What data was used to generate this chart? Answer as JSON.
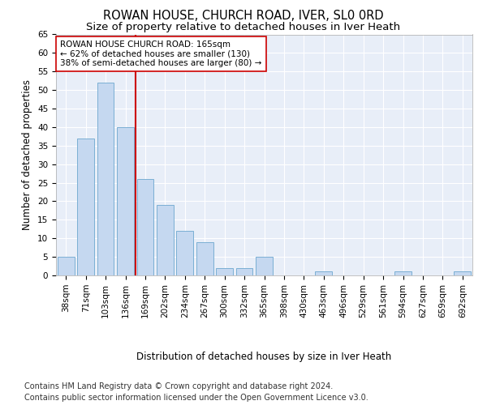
{
  "title": "ROWAN HOUSE, CHURCH ROAD, IVER, SL0 0RD",
  "subtitle": "Size of property relative to detached houses in Iver Heath",
  "xlabel": "Distribution of detached houses by size in Iver Heath",
  "ylabel": "Number of detached properties",
  "categories": [
    "38sqm",
    "71sqm",
    "103sqm",
    "136sqm",
    "169sqm",
    "202sqm",
    "234sqm",
    "267sqm",
    "300sqm",
    "332sqm",
    "365sqm",
    "398sqm",
    "430sqm",
    "463sqm",
    "496sqm",
    "529sqm",
    "561sqm",
    "594sqm",
    "627sqm",
    "659sqm",
    "692sqm"
  ],
  "values": [
    5,
    37,
    52,
    40,
    26,
    19,
    12,
    9,
    2,
    2,
    5,
    0,
    0,
    1,
    0,
    0,
    0,
    1,
    0,
    0,
    1
  ],
  "bar_color": "#c5d8f0",
  "bar_edge_color": "#7bafd4",
  "vline_color": "#cc0000",
  "annotation_text": "ROWAN HOUSE CHURCH ROAD: 165sqm\n← 62% of detached houses are smaller (130)\n38% of semi-detached houses are larger (80) →",
  "annotation_box_color": "#ffffff",
  "annotation_box_edge": "#cc0000",
  "ylim": [
    0,
    65
  ],
  "yticks": [
    0,
    5,
    10,
    15,
    20,
    25,
    30,
    35,
    40,
    45,
    50,
    55,
    60,
    65
  ],
  "footer1": "Contains HM Land Registry data © Crown copyright and database right 2024.",
  "footer2": "Contains public sector information licensed under the Open Government Licence v3.0.",
  "bg_color": "#ffffff",
  "plot_bg_color": "#e8eef8",
  "grid_color": "#ffffff",
  "title_fontsize": 10.5,
  "subtitle_fontsize": 9.5,
  "axis_label_fontsize": 8.5,
  "tick_fontsize": 7.5,
  "footer_fontsize": 7,
  "annotation_fontsize": 7.5
}
